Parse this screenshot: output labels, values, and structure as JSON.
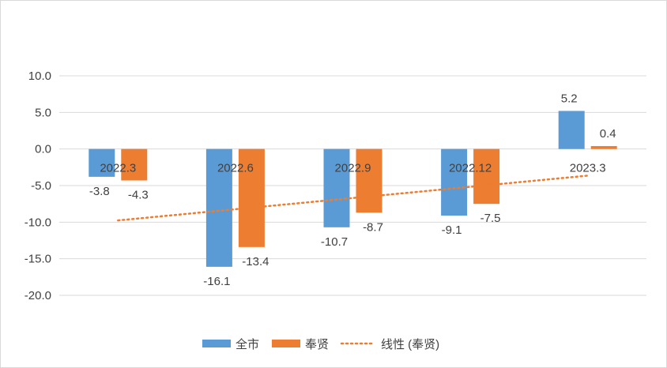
{
  "chart_data": {
    "type": "bar",
    "title": "",
    "xlabel": "",
    "ylabel": "",
    "ylim": [
      -20,
      10
    ],
    "yticks": [
      10,
      5,
      0,
      -5,
      -10,
      -15,
      -20
    ],
    "ytick_labels": [
      "10.0",
      "5.0",
      "0.0",
      "-5.0",
      "-10.0",
      "-15.0",
      "-20.0"
    ],
    "categories": [
      "2022.3",
      "2022.6",
      "2022.9",
      "2022.12",
      "2023.3"
    ],
    "series": [
      {
        "name": "全市",
        "color": "#5b9bd5",
        "values": [
          -3.8,
          -16.1,
          -10.7,
          -9.1,
          5.2
        ],
        "labels": [
          "-3.8",
          "-16.1",
          "-10.7",
          "-9.1",
          "5.2"
        ]
      },
      {
        "name": "奉贤",
        "color": "#ed7d31",
        "values": [
          -4.3,
          -13.4,
          -8.7,
          -7.5,
          0.4
        ],
        "labels": [
          "-4.3",
          "-13.4",
          "-8.7",
          "-7.5",
          "0.4"
        ]
      }
    ],
    "trendline": {
      "name": "线性 (奉贤)",
      "of_series": "奉贤",
      "type": "linear",
      "color": "#ed7d31",
      "style": "dotted"
    },
    "grid": true,
    "legend": "bottom"
  }
}
